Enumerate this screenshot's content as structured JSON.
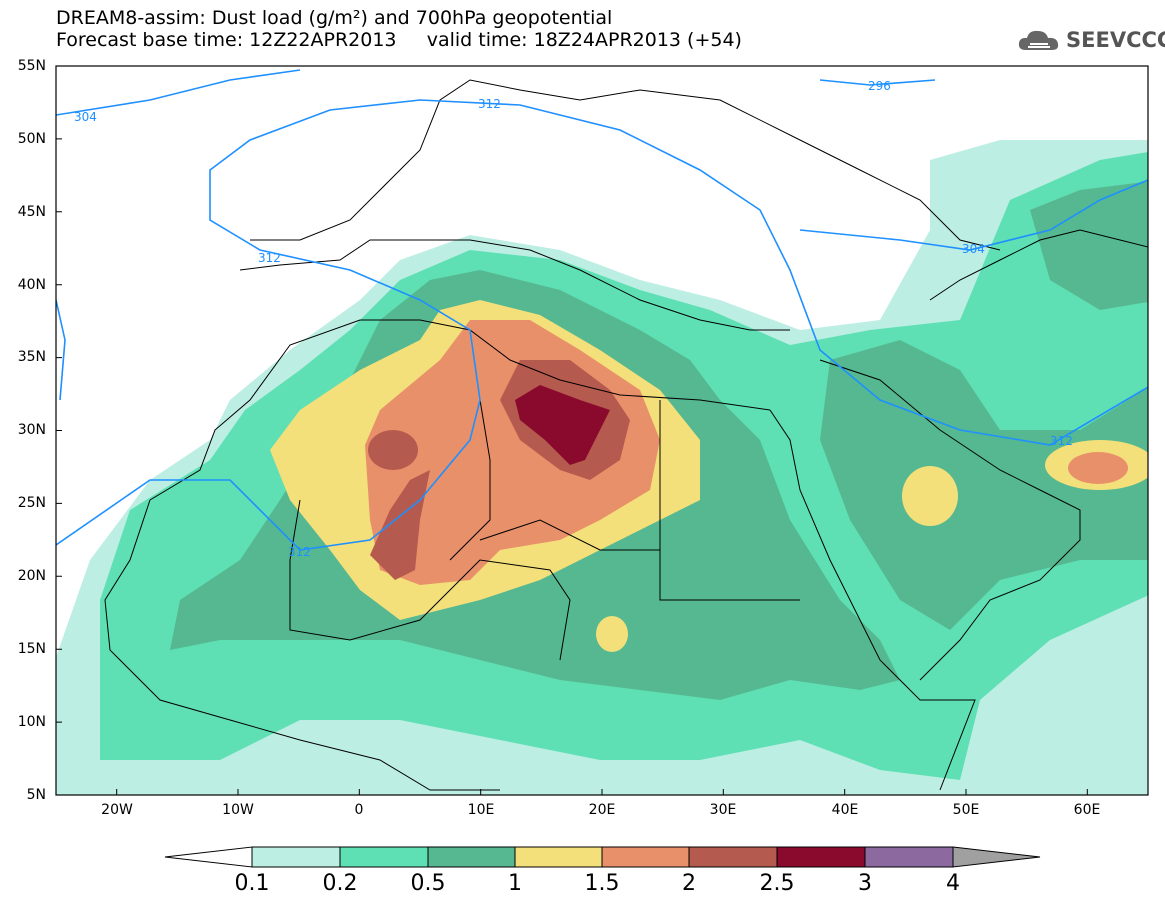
{
  "title": {
    "line1": "DREAM8-assim: Dust load (g/m²) and 700hPa geopotential",
    "line2": "Forecast base time: 12Z22APR2013     valid time: 18Z24APR2013 (+54)"
  },
  "logo": {
    "icon": "cloud-icon",
    "text": "SEEVCCC"
  },
  "axes": {
    "lat_labels": [
      "55N",
      "50N",
      "45N",
      "40N",
      "35N",
      "30N",
      "25N",
      "20N",
      "15N",
      "10N",
      "5N"
    ],
    "lon_labels": [
      "20W",
      "10W",
      "0",
      "10E",
      "20E",
      "30E",
      "40E",
      "50E",
      "60E"
    ]
  },
  "contours": {
    "labels": [
      "304",
      "312",
      "296",
      "312",
      "304",
      "312",
      "312"
    ],
    "line_color": "#1e90ff"
  },
  "colorbar": {
    "labels": [
      "0.1",
      "0.2",
      "0.5",
      "1",
      "1.5",
      "2",
      "2.5",
      "3",
      "4"
    ],
    "colors": [
      "#bdeee3",
      "#5fe0b4",
      "#55b891",
      "#f4e07a",
      "#e8906a",
      "#b55a4e",
      "#8a0a2e",
      "#8c6aa0",
      "#a0a0a0"
    ]
  }
}
